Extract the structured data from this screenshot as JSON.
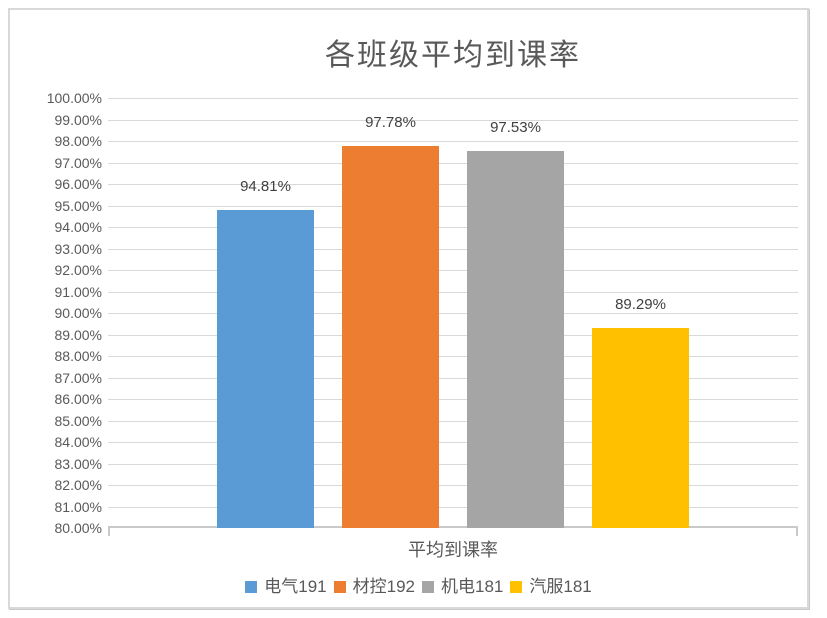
{
  "window": {
    "background_color": "#ffffff",
    "border_color": "#d9d9d9"
  },
  "chart_data": {
    "type": "bar",
    "title": "各班级平均到课率",
    "categories": [
      "平均到课率"
    ],
    "series": [
      {
        "name": "电气191",
        "value": 94.81,
        "label": "94.81%",
        "color": "#5B9BD5"
      },
      {
        "name": "材控192",
        "value": 97.78,
        "label": "97.78%",
        "color": "#ED7D31"
      },
      {
        "name": "机电181",
        "value": 97.53,
        "label": "97.53%",
        "color": "#A5A5A5"
      },
      {
        "name": "汽服181",
        "value": 89.29,
        "label": "89.29%",
        "color": "#FFC000"
      }
    ],
    "xlabel": "平均到课率",
    "ylabel": "",
    "ylim": [
      80,
      100
    ],
    "y_tick_step": 1,
    "y_ticks": [
      "100.00%",
      "99.00%",
      "98.00%",
      "97.00%",
      "96.00%",
      "95.00%",
      "94.00%",
      "93.00%",
      "92.00%",
      "91.00%",
      "90.00%",
      "89.00%",
      "88.00%",
      "87.00%",
      "86.00%",
      "85.00%",
      "84.00%",
      "83.00%",
      "82.00%",
      "81.00%",
      "80.00%"
    ],
    "grid": true,
    "legend_position": "bottom",
    "gridline_color": "#d9d9d9",
    "axis_line_color": "#c9c9c9",
    "title_color": "#595959",
    "tick_label_color": "#595959",
    "data_label_color": "#404040"
  }
}
